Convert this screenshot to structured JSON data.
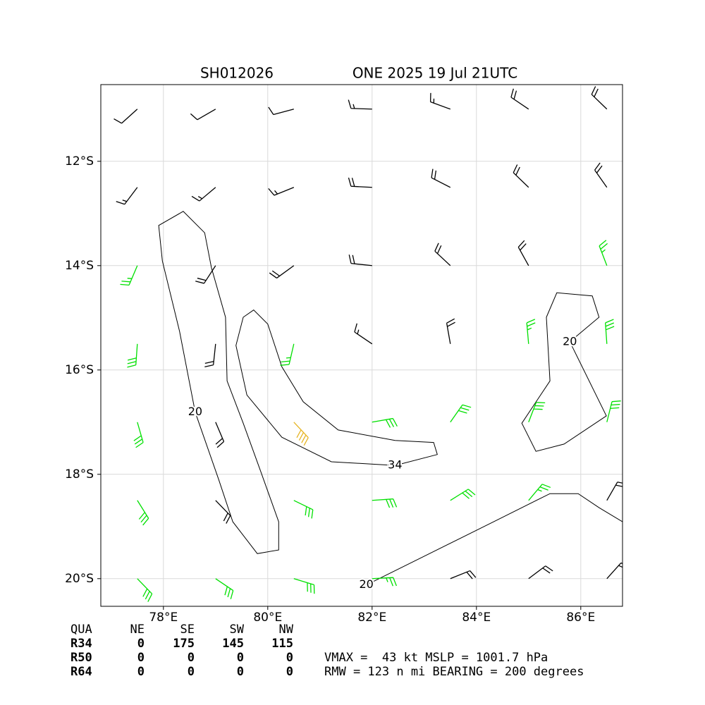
{
  "chart_data": {
    "type": "barbs",
    "storm_id": "SH012026",
    "title": "ONE 2025 19 Jul 21UTC",
    "xlim": [
      76.8,
      86.8
    ],
    "ylim": [
      -20.53,
      -10.53
    ],
    "xticks": [
      {
        "value": 78,
        "label": "78°E"
      },
      {
        "value": 80,
        "label": "80°E"
      },
      {
        "value": 82,
        "label": "82°E"
      },
      {
        "value": 84,
        "label": "84°E"
      },
      {
        "value": 86,
        "label": "86°E"
      }
    ],
    "yticks": [
      {
        "value": -12,
        "label": "12°S"
      },
      {
        "value": -14,
        "label": "14°S"
      },
      {
        "value": -16,
        "label": "16°S"
      },
      {
        "value": -18,
        "label": "18°S"
      },
      {
        "value": -20,
        "label": "20°S"
      }
    ],
    "grid": true,
    "barb_colors": [
      {
        "min": 0,
        "color": "#000000"
      },
      {
        "min": 25,
        "color": "#00e000"
      },
      {
        "min": 34,
        "color": "#e6b422"
      }
    ],
    "wind": {
      "lon": [
        77.5,
        79,
        80.5,
        82,
        83.5,
        85,
        86.5
      ],
      "lat": [
        -11,
        -12.5,
        -14,
        -15.5,
        -17,
        -18.5,
        -20
      ],
      "direction": [
        [
          228,
          240,
          255,
          272,
          290,
          304,
          314
        ],
        [
          217,
          230,
          248,
          273,
          297,
          314,
          325
        ],
        [
          203,
          213,
          234,
          276,
          313,
          331,
          339
        ],
        [
          184,
          186,
          193,
          304,
          350,
          355,
          356
        ],
        [
          164,
          157,
          137,
          80,
          35,
          21,
          14
        ],
        [
          148,
          136,
          116,
          86,
          58,
          40,
          30
        ],
        [
          136,
          124,
          107,
          87,
          68,
          53,
          42
        ]
      ],
      "speed": [
        [
          10,
          10,
          10,
          15,
          15,
          20,
          20
        ],
        [
          15,
          15,
          15,
          20,
          20,
          20,
          20
        ],
        [
          25,
          20,
          20,
          20,
          20,
          20,
          25
        ],
        [
          28,
          20,
          25,
          15,
          20,
          25,
          28
        ],
        [
          30,
          20,
          38,
          30,
          30,
          30,
          28
        ],
        [
          30,
          20,
          30,
          30,
          28,
          25,
          20
        ],
        [
          30,
          30,
          30,
          25,
          20,
          20,
          20
        ]
      ]
    },
    "contours": [
      {
        "level": 34,
        "closed": true,
        "lon": [
          82.44,
          81.22,
          80.27,
          79.6,
          79.39,
          79.53,
          79.73,
          80.0,
          80.27,
          80.68,
          81.35,
          82.44,
          83.18,
          83.25
        ],
        "lat": [
          -17.83,
          -17.76,
          -17.29,
          -16.48,
          -15.53,
          -14.99,
          -14.85,
          -15.12,
          -15.94,
          -16.61,
          -17.15,
          -17.35,
          -17.39,
          -17.62
        ]
      },
      {
        "level": 20,
        "closed": true,
        "lon": [
          78.61,
          78.31,
          77.98,
          77.91,
          78.38,
          78.79,
          78.92,
          79.19,
          79.22,
          79.53,
          79.87,
          80.21,
          80.21,
          79.8,
          79.33,
          79.06
        ],
        "lat": [
          -16.81,
          -15.26,
          -13.91,
          -13.23,
          -12.96,
          -13.37,
          -14.04,
          -14.99,
          -16.21,
          -17.02,
          -17.96,
          -18.91,
          -19.45,
          -19.52,
          -18.91,
          -18.1
        ]
      },
      {
        "level": 20,
        "closed": false,
        "lon": [
          81.89,
          82.98,
          84.33,
          85.41,
          85.95,
          86.35,
          86.8
        ],
        "lat": [
          -20.12,
          -19.58,
          -18.91,
          -18.37,
          -18.37,
          -18.64,
          -18.91
        ]
      },
      {
        "level": 20,
        "closed": true,
        "lon": [
          85.79,
          86.35,
          86.22,
          85.54,
          85.34,
          85.41,
          84.87,
          85.14,
          85.68,
          86.49
        ],
        "lat": [
          -15.46,
          -14.99,
          -14.58,
          -14.52,
          -14.99,
          -16.21,
          -17.02,
          -17.56,
          -17.42,
          -16.88
        ]
      }
    ]
  },
  "table": {
    "header": [
      "QUA",
      "NE",
      "SE",
      "SW",
      "NW"
    ],
    "rows": [
      [
        "R34",
        0,
        175,
        145,
        115
      ],
      [
        "R50",
        0,
        0,
        0,
        0
      ],
      [
        "R64",
        0,
        0,
        0,
        0
      ]
    ]
  },
  "info": [
    "VMAX =  43 kt MSLP = 1001.7 hPa",
    "RMW = 123 n mi BEARING = 200 degrees"
  ]
}
